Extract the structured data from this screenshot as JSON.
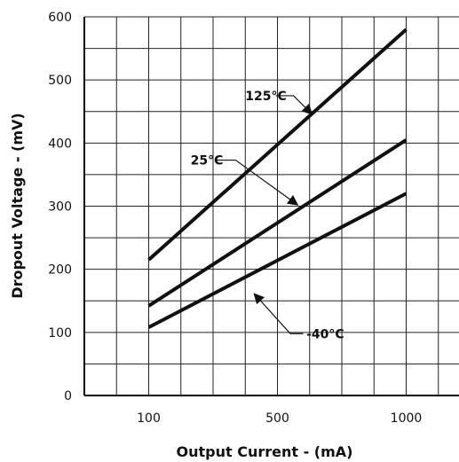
{
  "chart_data": {
    "type": "line",
    "xlabel": "Output Current - (mA)",
    "ylabel": "Dropout Voltage - (mV)",
    "xlim": [
      0,
      1200
    ],
    "ylim": [
      0,
      600
    ],
    "x_ticks": [
      {
        "value": 200,
        "label": "100"
      },
      {
        "value": 600,
        "label": "500"
      },
      {
        "value": 1000,
        "label": "1000"
      }
    ],
    "y_ticks": [
      0,
      100,
      200,
      300,
      400,
      500,
      600
    ],
    "x_grid": [
      100,
      200,
      300,
      400,
      500,
      600,
      700,
      800,
      900,
      1000,
      1100,
      1200
    ],
    "y_grid": [
      50,
      100,
      150,
      200,
      250,
      300,
      350,
      400,
      450,
      500,
      550,
      600
    ],
    "grid": true,
    "series": [
      {
        "name": "125°C",
        "x": [
          200,
          1000
        ],
        "values": [
          215,
          580
        ]
      },
      {
        "name": "25°C",
        "x": [
          200,
          1000
        ],
        "values": [
          142,
          405
        ]
      },
      {
        "name": "-40°C",
        "x": [
          200,
          1000
        ],
        "values": [
          108,
          320
        ]
      }
    ],
    "annotations": [
      {
        "text": "125°C",
        "series": "125°C",
        "label_x": 500,
        "label_y": 475,
        "path": [
          [
            595,
            475
          ],
          [
            650,
            475
          ],
          [
            705,
            447
          ]
        ]
      },
      {
        "text": "25°C",
        "series": "25°C",
        "label_x": 330,
        "label_y": 373,
        "path": [
          [
            405,
            373
          ],
          [
            470,
            373
          ],
          [
            660,
            303
          ]
        ]
      },
      {
        "text": "-40°C",
        "series": "-40°C",
        "label_x": 690,
        "label_y": 98,
        "path": [
          [
            680,
            98
          ],
          [
            640,
            98
          ],
          [
            530,
            160
          ]
        ]
      }
    ]
  }
}
